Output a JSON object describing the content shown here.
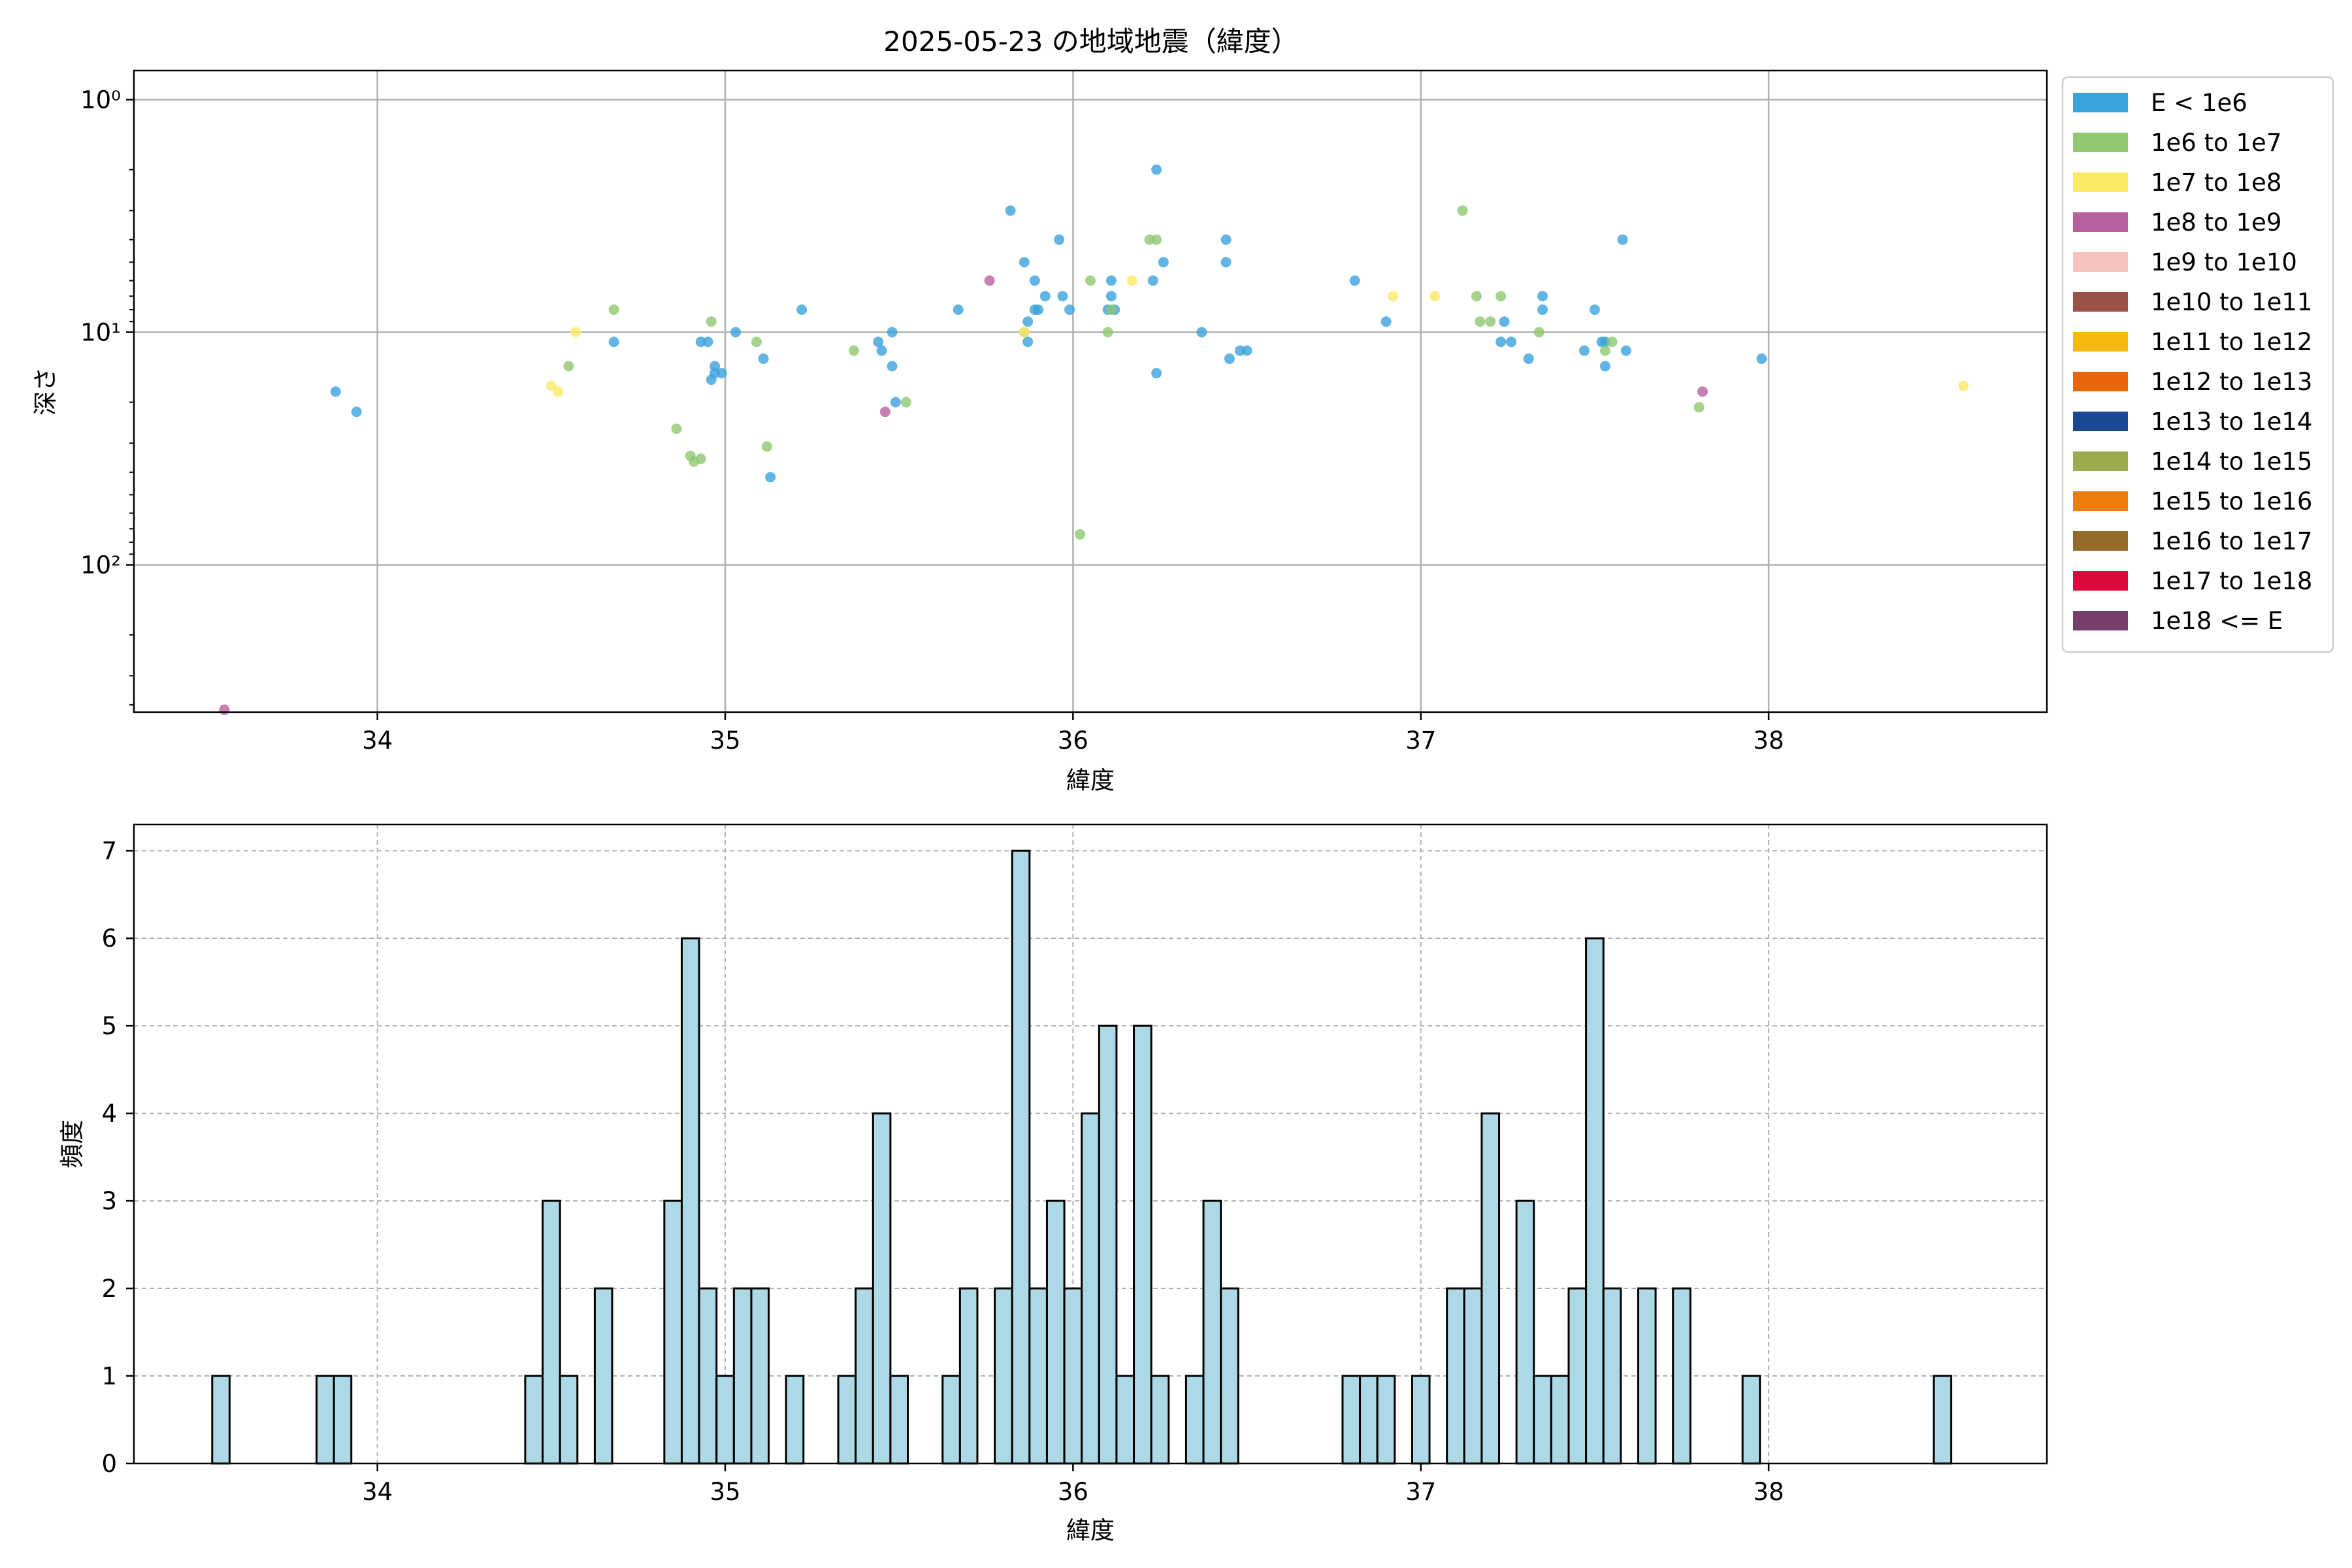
{
  "title": "2025-05-23 の地域地震（緯度）",
  "scatter": {
    "xlabel": "緯度",
    "ylabel": "深さ",
    "x_ticks": [
      "34",
      "35",
      "36",
      "37",
      "38"
    ],
    "y_ticks": [
      "10⁰",
      "10¹",
      "10²"
    ]
  },
  "histogram": {
    "xlabel": "緯度",
    "ylabel": "頻度",
    "x_ticks": [
      "34",
      "35",
      "36",
      "37",
      "38"
    ],
    "y_ticks": [
      "0",
      "1",
      "2",
      "3",
      "4",
      "5",
      "6",
      "7"
    ]
  },
  "legend": {
    "items": [
      {
        "label": "E < 1e6",
        "color": "#3ba3dc"
      },
      {
        "label": "1e6 to 1e7",
        "color": "#8fc86e"
      },
      {
        "label": "1e7 to 1e8",
        "color": "#fcea63"
      },
      {
        "label": "1e8 to 1e9",
        "color": "#b8609e"
      },
      {
        "label": "1e9 to 1e10",
        "color": "#f7c3bf"
      },
      {
        "label": "1e10 to 1e11",
        "color": "#9a5248"
      },
      {
        "label": "1e11 to 1e12",
        "color": "#f6b90e"
      },
      {
        "label": "1e12 to 1e13",
        "color": "#ec6408"
      },
      {
        "label": "1e13 to 1e14",
        "color": "#1c4893"
      },
      {
        "label": "1e14 to 1e15",
        "color": "#9cab4d"
      },
      {
        "label": "1e15 to 1e16",
        "color": "#ee7d10"
      },
      {
        "label": "1e16 to 1e17",
        "color": "#956b29"
      },
      {
        "label": "1e17 to 1e18",
        "color": "#dc0a3d"
      },
      {
        "label": "1e18 <= E",
        "color": "#773e6b"
      }
    ]
  },
  "chart_data": [
    {
      "type": "scatter",
      "title": "2025-05-23 の地域地震（緯度）",
      "xlabel": "緯度",
      "ylabel": "深さ",
      "y_scale": "log",
      "y_inverted": true,
      "xlim": [
        33.3,
        38.8
      ],
      "ylim": [
        0.75,
        430
      ],
      "grid": true,
      "legend_position": "outside-right",
      "series": [
        {
          "name": "E < 1e6",
          "color": "#3ba3dc",
          "points": [
            [
              33.88,
              18
            ],
            [
              33.94,
              22
            ],
            [
              34.68,
              11
            ],
            [
              34.93,
              11
            ],
            [
              34.95,
              11
            ],
            [
              34.96,
              16
            ],
            [
              34.97,
              14
            ],
            [
              34.97,
              15
            ],
            [
              34.99,
              15
            ],
            [
              35.03,
              10
            ],
            [
              35.11,
              13
            ],
            [
              35.13,
              42
            ],
            [
              35.22,
              8
            ],
            [
              35.44,
              11
            ],
            [
              35.45,
              12
            ],
            [
              35.48,
              10
            ],
            [
              35.48,
              14
            ],
            [
              35.49,
              20
            ],
            [
              35.67,
              8
            ],
            [
              35.82,
              3
            ],
            [
              35.86,
              5
            ],
            [
              35.87,
              11
            ],
            [
              35.87,
              9
            ],
            [
              35.89,
              8
            ],
            [
              35.89,
              6
            ],
            [
              35.9,
              8
            ],
            [
              35.92,
              7
            ],
            [
              35.96,
              4
            ],
            [
              35.97,
              7
            ],
            [
              35.99,
              8
            ],
            [
              36.1,
              8
            ],
            [
              36.11,
              6
            ],
            [
              36.11,
              7
            ],
            [
              36.12,
              8
            ],
            [
              36.23,
              6
            ],
            [
              36.24,
              15
            ],
            [
              36.24,
              2
            ],
            [
              36.26,
              5
            ],
            [
              36.37,
              10
            ],
            [
              36.44,
              4
            ],
            [
              36.44,
              5
            ],
            [
              36.45,
              13
            ],
            [
              36.48,
              12
            ],
            [
              36.5,
              12
            ],
            [
              36.81,
              6
            ],
            [
              36.9,
              9
            ],
            [
              37.23,
              11
            ],
            [
              37.24,
              9
            ],
            [
              37.26,
              11
            ],
            [
              37.31,
              13
            ],
            [
              37.35,
              7
            ],
            [
              37.35,
              8
            ],
            [
              37.47,
              12
            ],
            [
              37.5,
              8
            ],
            [
              37.52,
              11
            ],
            [
              37.53,
              11
            ],
            [
              37.53,
              14
            ],
            [
              37.58,
              4
            ],
            [
              37.59,
              12
            ],
            [
              37.98,
              13
            ]
          ]
        },
        {
          "name": "1e6 to 1e7",
          "color": "#8fc86e",
          "points": [
            [
              34.55,
              14
            ],
            [
              34.68,
              8
            ],
            [
              34.86,
              26
            ],
            [
              34.9,
              34
            ],
            [
              34.91,
              36
            ],
            [
              34.93,
              35
            ],
            [
              34.96,
              9
            ],
            [
              35.09,
              11
            ],
            [
              35.12,
              31
            ],
            [
              35.37,
              12
            ],
            [
              35.52,
              20
            ],
            [
              35.86,
              10
            ],
            [
              36.02,
              74
            ],
            [
              36.05,
              6
            ],
            [
              36.1,
              10
            ],
            [
              36.11,
              8
            ],
            [
              36.22,
              4
            ],
            [
              36.24,
              4
            ],
            [
              37.12,
              3
            ],
            [
              37.16,
              7
            ],
            [
              37.17,
              9
            ],
            [
              37.2,
              9
            ],
            [
              37.23,
              7
            ],
            [
              37.34,
              10
            ],
            [
              37.53,
              12
            ],
            [
              37.55,
              11
            ],
            [
              37.8,
              21
            ]
          ]
        },
        {
          "name": "1e7 to 1e8",
          "color": "#fcea63",
          "points": [
            [
              34.5,
              17
            ],
            [
              34.52,
              18
            ],
            [
              34.57,
              10
            ],
            [
              35.86,
              10
            ],
            [
              36.17,
              6
            ],
            [
              36.92,
              7
            ],
            [
              37.04,
              7
            ],
            [
              38.56,
              17
            ]
          ]
        },
        {
          "name": "1e8 to 1e9",
          "color": "#b8609e",
          "points": [
            [
              33.56,
              420
            ],
            [
              35.46,
              22
            ],
            [
              35.76,
              6
            ],
            [
              37.81,
              18
            ]
          ]
        }
      ]
    },
    {
      "type": "bar",
      "xlabel": "緯度",
      "ylabel": "頻度",
      "xlim": [
        33.3,
        38.8
      ],
      "ylim": [
        0,
        7.3
      ],
      "bin_width": 0.05,
      "bin_start": 33.525,
      "grid": true,
      "bars": [
        {
          "x": 33.55,
          "count": 1
        },
        {
          "x": 33.85,
          "count": 1
        },
        {
          "x": 33.9,
          "count": 1
        },
        {
          "x": 34.45,
          "count": 1
        },
        {
          "x": 34.5,
          "count": 3
        },
        {
          "x": 34.55,
          "count": 1
        },
        {
          "x": 34.65,
          "count": 2
        },
        {
          "x": 34.85,
          "count": 3
        },
        {
          "x": 34.9,
          "count": 6
        },
        {
          "x": 34.95,
          "count": 2
        },
        {
          "x": 35.0,
          "count": 1
        },
        {
          "x": 35.05,
          "count": 2
        },
        {
          "x": 35.1,
          "count": 2
        },
        {
          "x": 35.2,
          "count": 1
        },
        {
          "x": 35.35,
          "count": 1
        },
        {
          "x": 35.4,
          "count": 2
        },
        {
          "x": 35.45,
          "count": 4
        },
        {
          "x": 35.5,
          "count": 1
        },
        {
          "x": 35.65,
          "count": 1
        },
        {
          "x": 35.7,
          "count": 2
        },
        {
          "x": 35.8,
          "count": 2
        },
        {
          "x": 35.85,
          "count": 7
        },
        {
          "x": 35.9,
          "count": 2
        },
        {
          "x": 35.95,
          "count": 3
        },
        {
          "x": 36.0,
          "count": 2
        },
        {
          "x": 36.05,
          "count": 4
        },
        {
          "x": 36.1,
          "count": 5
        },
        {
          "x": 36.15,
          "count": 1
        },
        {
          "x": 36.2,
          "count": 5
        },
        {
          "x": 36.25,
          "count": 1
        },
        {
          "x": 36.35,
          "count": 1
        },
        {
          "x": 36.4,
          "count": 3
        },
        {
          "x": 36.45,
          "count": 2
        },
        {
          "x": 36.8,
          "count": 1
        },
        {
          "x": 36.85,
          "count": 1
        },
        {
          "x": 36.9,
          "count": 1
        },
        {
          "x": 37.0,
          "count": 1
        },
        {
          "x": 37.1,
          "count": 2
        },
        {
          "x": 37.15,
          "count": 2
        },
        {
          "x": 37.2,
          "count": 4
        },
        {
          "x": 37.3,
          "count": 3
        },
        {
          "x": 37.35,
          "count": 1
        },
        {
          "x": 37.4,
          "count": 1
        },
        {
          "x": 37.45,
          "count": 2
        },
        {
          "x": 37.5,
          "count": 6
        },
        {
          "x": 37.55,
          "count": 2
        },
        {
          "x": 37.65,
          "count": 2
        },
        {
          "x": 37.75,
          "count": 2
        },
        {
          "x": 37.95,
          "count": 1
        },
        {
          "x": 38.5,
          "count": 1
        }
      ]
    }
  ]
}
